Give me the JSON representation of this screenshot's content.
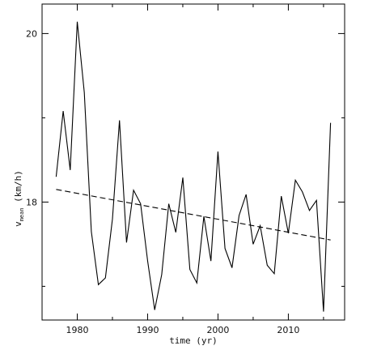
{
  "chart_data": {
    "type": "line",
    "title": "",
    "xlabel": "time (yr)",
    "ylabel": {
      "main": "v",
      "sub": "mean",
      "unit": " (km/h)"
    },
    "xlim": [
      1975,
      2018
    ],
    "ylim": [
      16.6,
      20.35
    ],
    "x_ticks_labeled": [
      1980,
      1990,
      2000,
      2010
    ],
    "x_ticks_minor": [
      1985,
      1995,
      2005,
      2015
    ],
    "y_ticks_labeled": [
      18,
      20
    ],
    "y_ticks_minor": [
      17,
      19
    ],
    "grid": false,
    "series": [
      {
        "style": "solid",
        "color": "#000000",
        "x": [
          1977,
          1978,
          1979,
          1980,
          1981,
          1982,
          1983,
          1984,
          1985,
          1986,
          1987,
          1988,
          1989,
          1990,
          1991,
          1992,
          1993,
          1994,
          1995,
          1996,
          1997,
          1998,
          1999,
          2000,
          2001,
          2002,
          2003,
          2004,
          2005,
          2006,
          2007,
          2008,
          2009,
          2010,
          2011,
          2012,
          2013,
          2014,
          2015,
          2016
        ],
        "values": [
          18.3,
          19.08,
          18.38,
          20.14,
          19.3,
          17.65,
          17.02,
          17.1,
          17.8,
          18.97,
          17.52,
          18.14,
          17.98,
          17.3,
          16.72,
          17.14,
          17.98,
          17.64,
          18.29,
          17.2,
          17.04,
          17.83,
          17.3,
          18.6,
          17.45,
          17.22,
          17.84,
          18.09,
          17.5,
          17.72,
          17.25,
          17.15,
          18.07,
          17.63,
          18.26,
          18.12,
          17.9,
          18.02,
          16.7,
          18.94
        ]
      },
      {
        "style": "dashed",
        "color": "#000000",
        "x": [
          1977,
          2016
        ],
        "values": [
          18.15,
          17.55
        ]
      }
    ]
  }
}
